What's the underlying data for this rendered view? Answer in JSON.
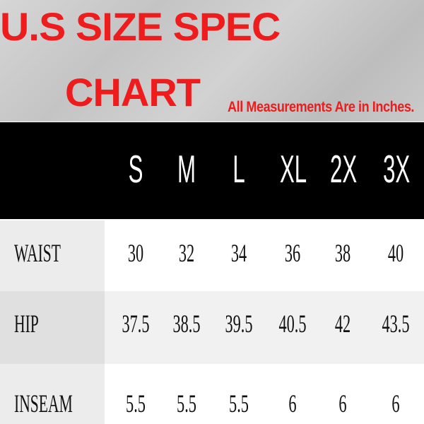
{
  "header": {
    "title_line1": "U.S SIZE SPEC",
    "title_line2": "CHART",
    "note": "All Measurements Are in Inches."
  },
  "colors": {
    "title": "#ee1c1c",
    "header_band": "#000000",
    "size_text": "#ffffff"
  },
  "chart_data": {
    "type": "table",
    "title": "U.S SIZE SPEC CHART",
    "subtitle": "All Measurements Are in Inches.",
    "columns": [
      "S",
      "M",
      "L",
      "XL",
      "2X",
      "3X"
    ],
    "rows": [
      {
        "label": "WAIST",
        "values": [
          "30",
          "32",
          "34",
          "36",
          "38",
          "40"
        ]
      },
      {
        "label": "HIP",
        "values": [
          "37.5",
          "38.5",
          "39.5",
          "40.5",
          "42",
          "43.5"
        ]
      },
      {
        "label": "INSEAM",
        "values": [
          "5.5",
          "5.5",
          "5.5",
          "6",
          "6",
          "6"
        ]
      }
    ]
  }
}
